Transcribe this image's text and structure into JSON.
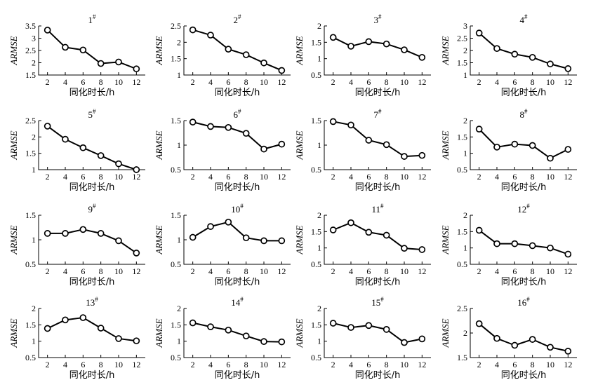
{
  "chart_data": [
    {
      "type": "line",
      "title": "1",
      "title_sup": "#",
      "xlabel": "同化时长/h",
      "ylabel": "ARMSE",
      "x": [
        2,
        4,
        6,
        8,
        10,
        12
      ],
      "y": [
        3.33,
        2.63,
        2.52,
        1.97,
        2.03,
        1.75
      ],
      "xlim": [
        1,
        13
      ],
      "ylim": [
        1.5,
        3.5
      ],
      "yticks": [
        1.5,
        2.0,
        2.5,
        3.0,
        3.5
      ],
      "marker": "open-circle"
    },
    {
      "type": "line",
      "title": "2",
      "title_sup": "#",
      "xlabel": "同化时长/h",
      "ylabel": "ARMSE",
      "x": [
        2,
        4,
        6,
        8,
        10,
        12
      ],
      "y": [
        2.38,
        2.22,
        1.79,
        1.62,
        1.37,
        1.14
      ],
      "xlim": [
        1,
        13
      ],
      "ylim": [
        1.0,
        2.5
      ],
      "yticks": [
        1.0,
        1.5,
        2.0,
        2.5
      ],
      "marker": "open-circle"
    },
    {
      "type": "line",
      "title": "3",
      "title_sup": "#",
      "xlabel": "同化时长/h",
      "ylabel": "ARMSE",
      "x": [
        2,
        4,
        6,
        8,
        10,
        12
      ],
      "y": [
        1.65,
        1.38,
        1.52,
        1.45,
        1.27,
        1.04
      ],
      "xlim": [
        1,
        13
      ],
      "ylim": [
        0.5,
        2.0
      ],
      "yticks": [
        0.5,
        1.0,
        1.5,
        2.0
      ],
      "marker": "open-circle"
    },
    {
      "type": "line",
      "title": "4",
      "title_sup": "#",
      "xlabel": "同化时长/h",
      "ylabel": "ARMSE",
      "x": [
        2,
        4,
        6,
        8,
        10,
        12
      ],
      "y": [
        2.71,
        2.08,
        1.85,
        1.72,
        1.45,
        1.26
      ],
      "xlim": [
        1,
        13
      ],
      "ylim": [
        1.0,
        3.0
      ],
      "yticks": [
        1.0,
        1.5,
        2.0,
        2.5,
        3.0
      ],
      "marker": "open-circle"
    },
    {
      "type": "line",
      "title": "5",
      "title_sup": "#",
      "xlabel": "同化时长/h",
      "ylabel": "ARMSE",
      "x": [
        2,
        4,
        6,
        8,
        10,
        12
      ],
      "y": [
        2.33,
        1.93,
        1.67,
        1.43,
        1.18,
        1.0
      ],
      "xlim": [
        1,
        13
      ],
      "ylim": [
        1.0,
        2.5
      ],
      "yticks": [
        1.0,
        1.5,
        2.0,
        2.5
      ],
      "marker": "open-circle"
    },
    {
      "type": "line",
      "title": "6",
      "title_sup": "#",
      "xlabel": "同化时长/h",
      "ylabel": "ARMSE",
      "x": [
        2,
        4,
        6,
        8,
        10,
        12
      ],
      "y": [
        1.47,
        1.38,
        1.36,
        1.24,
        0.92,
        1.02
      ],
      "xlim": [
        1,
        13
      ],
      "ylim": [
        0.5,
        1.5
      ],
      "yticks": [
        0.5,
        1.0,
        1.5
      ],
      "marker": "open-circle"
    },
    {
      "type": "line",
      "title": "7",
      "title_sup": "#",
      "xlabel": "同化时长/h",
      "ylabel": "ARMSE",
      "x": [
        2,
        4,
        6,
        8,
        10,
        12
      ],
      "y": [
        1.48,
        1.41,
        1.1,
        1.01,
        0.77,
        0.79
      ],
      "xlim": [
        1,
        13
      ],
      "ylim": [
        0.5,
        1.5
      ],
      "yticks": [
        0.5,
        1.0,
        1.5
      ],
      "marker": "open-circle"
    },
    {
      "type": "line",
      "title": "8",
      "title_sup": "#",
      "xlabel": "同化时长/h",
      "ylabel": "ARMSE",
      "x": [
        2,
        4,
        6,
        8,
        10,
        12
      ],
      "y": [
        1.74,
        1.19,
        1.28,
        1.24,
        0.85,
        1.12
      ],
      "xlim": [
        1,
        13
      ],
      "ylim": [
        0.5,
        2.0
      ],
      "yticks": [
        0.5,
        1.0,
        1.5,
        2.0
      ],
      "marker": "open-circle"
    },
    {
      "type": "line",
      "title": "9",
      "title_sup": "#",
      "xlabel": "同化时长/h",
      "ylabel": "ARMSE",
      "x": [
        2,
        4,
        6,
        8,
        10,
        12
      ],
      "y": [
        1.13,
        1.13,
        1.21,
        1.13,
        0.98,
        0.73
      ],
      "xlim": [
        1,
        13
      ],
      "ylim": [
        0.5,
        1.5
      ],
      "yticks": [
        0.5,
        1.0,
        1.5
      ],
      "marker": "open-circle"
    },
    {
      "type": "line",
      "title": "10",
      "title_sup": "#",
      "xlabel": "同化时长/h",
      "ylabel": "ARMSE",
      "x": [
        2,
        4,
        6,
        8,
        10,
        12
      ],
      "y": [
        1.05,
        1.27,
        1.36,
        1.04,
        0.98,
        0.98
      ],
      "xlim": [
        1,
        13
      ],
      "ylim": [
        0.5,
        1.5
      ],
      "yticks": [
        0.5,
        1.0,
        1.5
      ],
      "marker": "open-circle"
    },
    {
      "type": "line",
      "title": "11",
      "title_sup": "#",
      "xlabel": "同化时长/h",
      "ylabel": "ARMSE",
      "x": [
        2,
        4,
        6,
        8,
        10,
        12
      ],
      "y": [
        1.55,
        1.77,
        1.48,
        1.39,
        0.99,
        0.95
      ],
      "xlim": [
        1,
        13
      ],
      "ylim": [
        0.5,
        2.0
      ],
      "yticks": [
        0.5,
        1.0,
        1.5,
        2.0
      ],
      "marker": "open-circle"
    },
    {
      "type": "line",
      "title": "12",
      "title_sup": "#",
      "xlabel": "同化时长/h",
      "ylabel": "ARMSE",
      "x": [
        2,
        4,
        6,
        8,
        10,
        12
      ],
      "y": [
        1.54,
        1.13,
        1.13,
        1.07,
        1.0,
        0.81
      ],
      "xlim": [
        1,
        13
      ],
      "ylim": [
        0.5,
        2.0
      ],
      "yticks": [
        0.5,
        1.0,
        1.5,
        2.0
      ],
      "marker": "open-circle"
    },
    {
      "type": "line",
      "title": "13",
      "title_sup": "#",
      "xlabel": "同化时长/h",
      "ylabel": "ARMSE",
      "x": [
        2,
        4,
        6,
        8,
        10,
        12
      ],
      "y": [
        1.39,
        1.65,
        1.72,
        1.4,
        1.08,
        1.01
      ],
      "xlim": [
        1,
        13
      ],
      "ylim": [
        0.5,
        2.0
      ],
      "yticks": [
        0.5,
        1.0,
        1.5,
        2.0
      ],
      "marker": "open-circle"
    },
    {
      "type": "line",
      "title": "14",
      "title_sup": "#",
      "xlabel": "同化时长/h",
      "ylabel": "ARMSE",
      "x": [
        2,
        4,
        6,
        8,
        10,
        12
      ],
      "y": [
        1.56,
        1.44,
        1.34,
        1.16,
        0.99,
        0.98
      ],
      "xlim": [
        1,
        13
      ],
      "ylim": [
        0.5,
        2.0
      ],
      "yticks": [
        0.5,
        1.0,
        1.5,
        2.0
      ],
      "marker": "open-circle"
    },
    {
      "type": "line",
      "title": "15",
      "title_sup": "#",
      "xlabel": "同化时长/h",
      "ylabel": "ARMSE",
      "x": [
        2,
        4,
        6,
        8,
        10,
        12
      ],
      "y": [
        1.55,
        1.42,
        1.48,
        1.36,
        0.96,
        1.07
      ],
      "xlim": [
        1,
        13
      ],
      "ylim": [
        0.5,
        2.0
      ],
      "yticks": [
        0.5,
        1.0,
        1.5,
        2.0
      ],
      "marker": "open-circle"
    },
    {
      "type": "line",
      "title": "16",
      "title_sup": "#",
      "xlabel": "同化时长/h",
      "ylabel": "ARMSE",
      "x": [
        2,
        4,
        6,
        8,
        10,
        12
      ],
      "y": [
        2.19,
        1.89,
        1.75,
        1.87,
        1.71,
        1.63
      ],
      "xlim": [
        1,
        13
      ],
      "ylim": [
        1.5,
        2.5
      ],
      "yticks": [
        1.5,
        2.0,
        2.5
      ],
      "marker": "open-circle"
    }
  ]
}
